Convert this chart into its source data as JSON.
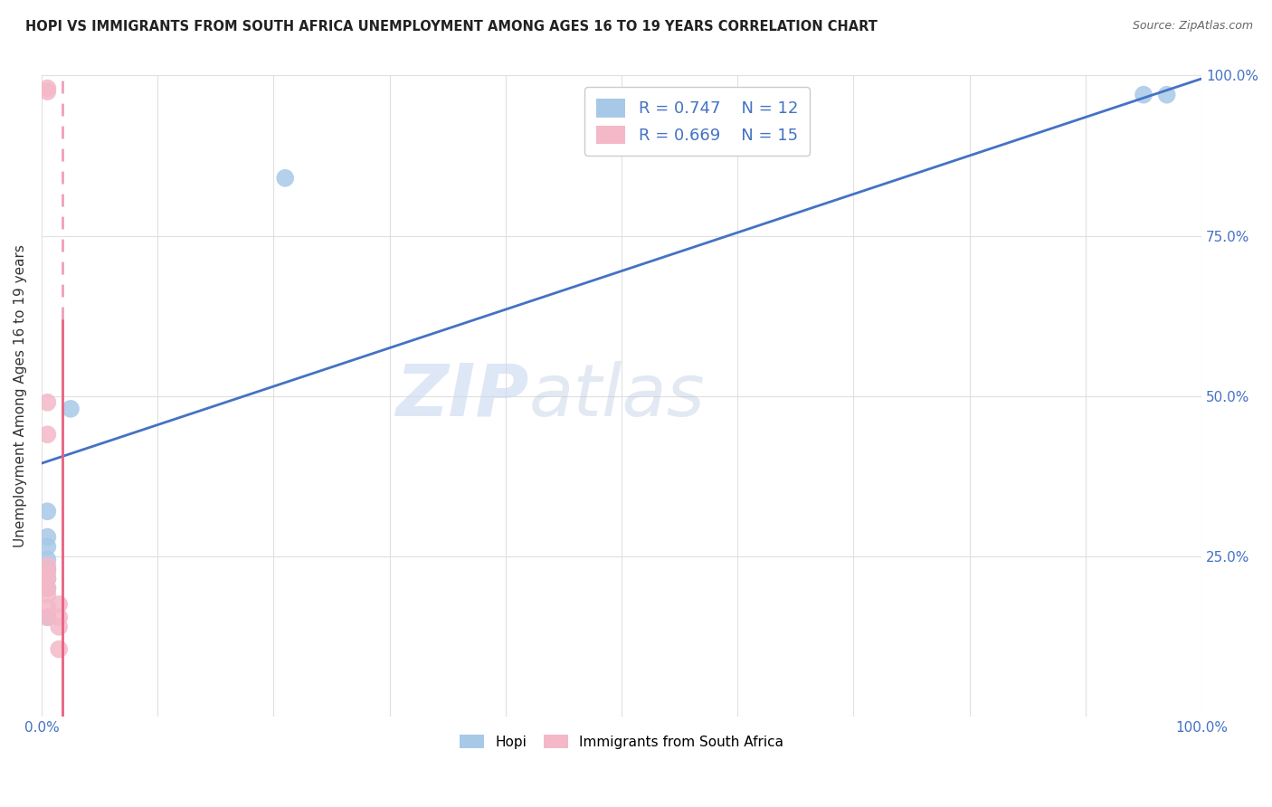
{
  "title": "HOPI VS IMMIGRANTS FROM SOUTH AFRICA UNEMPLOYMENT AMONG AGES 16 TO 19 YEARS CORRELATION CHART",
  "source": "Source: ZipAtlas.com",
  "ylabel": "Unemployment Among Ages 16 to 19 years",
  "xlim": [
    0,
    1.0
  ],
  "ylim": [
    0,
    1.0
  ],
  "hopi_color": "#a8c8e8",
  "sa_color": "#f4b8c8",
  "hopi_line_color": "#4472c4",
  "sa_line_color": "#e86080",
  "sa_line_dashed_color": "#f0a0b8",
  "R_hopi": 0.747,
  "N_hopi": 12,
  "R_sa": 0.669,
  "N_sa": 15,
  "hopi_scatter_x": [
    0.005,
    0.005,
    0.005,
    0.005,
    0.005,
    0.005,
    0.005,
    0.005,
    0.025,
    0.21,
    0.95,
    0.97
  ],
  "hopi_scatter_y": [
    0.32,
    0.28,
    0.265,
    0.245,
    0.23,
    0.215,
    0.2,
    0.155,
    0.48,
    0.84,
    0.97,
    0.97
  ],
  "sa_scatter_x": [
    0.005,
    0.005,
    0.005,
    0.005,
    0.005,
    0.005,
    0.005,
    0.005,
    0.005,
    0.005,
    0.005,
    0.015,
    0.015,
    0.015,
    0.015
  ],
  "sa_scatter_y": [
    0.98,
    0.975,
    0.49,
    0.44,
    0.235,
    0.225,
    0.215,
    0.2,
    0.19,
    0.17,
    0.155,
    0.175,
    0.155,
    0.14,
    0.105
  ],
  "hopi_line_x0": 0.0,
  "hopi_line_y0": 0.395,
  "hopi_line_x1": 1.0,
  "hopi_line_y1": 0.995,
  "sa_line_solid_x0": 0.018,
  "sa_line_solid_y0": 0.0,
  "sa_line_solid_x1": 0.018,
  "sa_line_solid_y1": 0.62,
  "sa_line_dashed_x0": 0.018,
  "sa_line_dashed_y0": 0.62,
  "sa_line_dashed_x1": 0.018,
  "sa_line_dashed_y1": 1.0,
  "watermark_zip": "ZIP",
  "watermark_atlas": "atlas",
  "background_color": "#ffffff",
  "grid_color": "#e0e0e0",
  "title_fontsize": 10.5,
  "tick_color": "#4472c4",
  "legend_label_color": "#4472c4"
}
